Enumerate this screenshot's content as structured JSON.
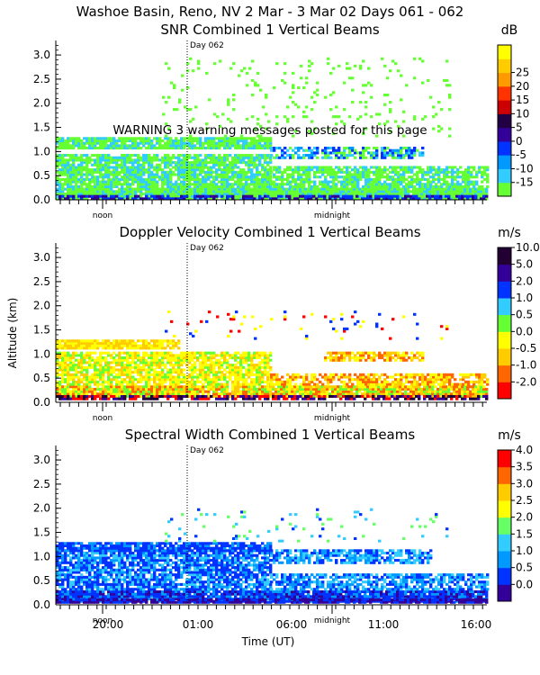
{
  "header": {
    "title": "Washoe Basin, Reno, NV   2 Mar -  3 Mar 02 Days 061 - 062"
  },
  "warning": "WARNING  3 warning messages posted for this page",
  "colors": {
    "snr": [
      "#66ff33",
      "#33ccff",
      "#0099ff",
      "#0033ff",
      "#330099",
      "#220044",
      "#cc0000",
      "#ff3300",
      "#ff9900",
      "#ffcc00",
      "#ffff00"
    ],
    "doppler": [
      "#ff0000",
      "#ff6600",
      "#ffcc00",
      "#ffff00",
      "#66ff33",
      "#33ccff",
      "#0033ff",
      "#330099",
      "#220033"
    ],
    "width": [
      "#330099",
      "#0033ff",
      "#0099ff",
      "#33ccff",
      "#66ff66",
      "#ffff00",
      "#ffcc00",
      "#ff6600",
      "#ff0000"
    ]
  },
  "chart_data": [
    {
      "type": "heatmap",
      "title": "SNR Combined 1 Vertical Beams",
      "unit": "dB",
      "ylabel": "",
      "ylim": [
        0.0,
        3.3
      ],
      "y_ticks": [
        "0.0",
        "0.5",
        "1.0",
        "1.5",
        "2.0",
        "2.5",
        "3.0"
      ],
      "colorbar_ticks": [
        "-15",
        "-10",
        "-5",
        "0",
        "5",
        "10",
        "15",
        "20",
        "25"
      ],
      "day_marker": "Day 062",
      "x_markers": [
        "noon",
        "midnight"
      ]
    },
    {
      "type": "heatmap",
      "title": "Doppler Velocity Combined 1 Vertical Beams",
      "unit": "m/s",
      "ylabel": "Altitude (km)",
      "ylim": [
        0.0,
        3.3
      ],
      "y_ticks": [
        "0.0",
        "0.5",
        "1.0",
        "1.5",
        "2.0",
        "2.5",
        "3.0"
      ],
      "colorbar_ticks": [
        "-2.0",
        "-1.0",
        "-0.5",
        "0.0",
        "0.5",
        "1.0",
        "2.0",
        "5.0",
        "10.0"
      ],
      "day_marker": "Day 062",
      "x_markers": [
        "noon",
        "midnight"
      ]
    },
    {
      "type": "heatmap",
      "title": "Spectral Width Combined 1 Vertical Beams",
      "unit": "m/s",
      "ylabel": "",
      "ylim": [
        0.0,
        3.3
      ],
      "y_ticks": [
        "0.0",
        "0.5",
        "1.0",
        "1.5",
        "2.0",
        "2.5",
        "3.0"
      ],
      "colorbar_ticks": [
        "0.0",
        "0.5",
        "1.0",
        "1.5",
        "2.0",
        "2.5",
        "3.0",
        "3.5",
        "4.0"
      ],
      "day_marker": "Day 062",
      "x_markers": [
        "noon",
        "midnight"
      ],
      "x_ticks": [
        "20:00",
        "01:00",
        "06:00",
        "11:00",
        "16:00"
      ],
      "xlabel": "Time (UT)"
    }
  ]
}
